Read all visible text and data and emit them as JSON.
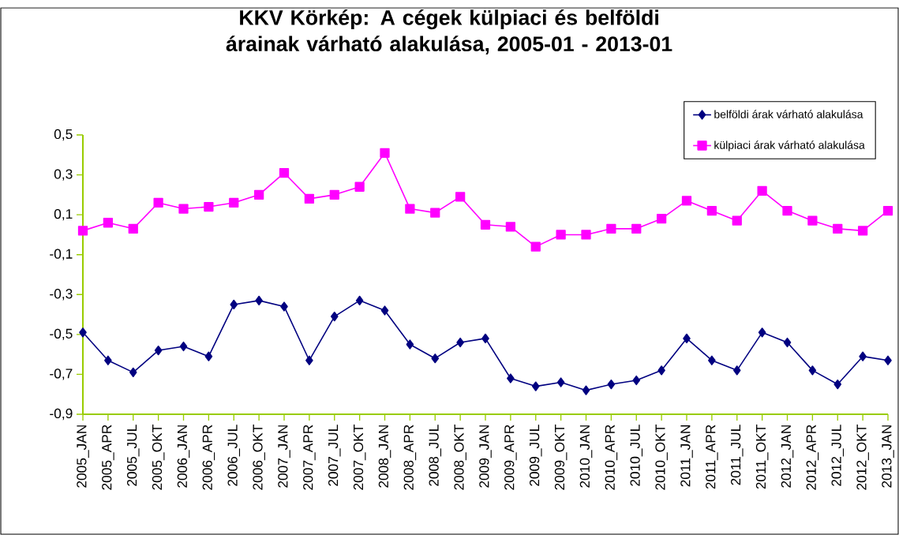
{
  "chart_data": {
    "type": "line",
    "title": "KKV Körkép: A cégek külpiaci és belföldi árainak várható alakulása, 2005-01 - 2013-01",
    "categories": [
      "2005_JAN",
      "2005_APR",
      "2005_JUL",
      "2005_OKT",
      "2006_JAN",
      "2006_APR",
      "2006_JUL",
      "2006_OKT",
      "2007_JAN",
      "2007_APR",
      "2007_JUL",
      "2007_OKT",
      "2008_JAN",
      "2008_APR",
      "2008_JUL",
      "2008_OKT",
      "2009_JAN",
      "2009_APR",
      "2009_JUL",
      "2009_OKT",
      "2010_JAN",
      "2010_APR",
      "2010_JUL",
      "2010_OKT",
      "2011_JAN",
      "2011_APR",
      "2011_JUL",
      "2011_OKT",
      "2012_JAN",
      "2012_APR",
      "2012_JUL",
      "2012_OKT",
      "2013_JAN"
    ],
    "series": [
      {
        "name": "belföldi árak várható alakulása",
        "color": "#000080",
        "marker": "diamond",
        "values": [
          -0.49,
          -0.63,
          -0.69,
          -0.58,
          -0.56,
          -0.61,
          -0.35,
          -0.33,
          -0.36,
          -0.63,
          -0.41,
          -0.33,
          -0.38,
          -0.55,
          -0.62,
          -0.54,
          -0.52,
          -0.72,
          -0.76,
          -0.74,
          -0.78,
          -0.75,
          -0.73,
          -0.68,
          -0.52,
          -0.63,
          -0.68,
          -0.49,
          -0.54,
          -0.68,
          -0.75,
          -0.61,
          -0.63
        ]
      },
      {
        "name": "külpiaci árak várható alakulása",
        "color": "#ff00ff",
        "marker": "square",
        "values": [
          0.02,
          0.06,
          0.03,
          0.16,
          0.13,
          0.14,
          0.16,
          0.2,
          0.31,
          0.18,
          0.2,
          0.24,
          0.41,
          0.13,
          0.11,
          0.19,
          0.05,
          0.04,
          -0.06,
          0.0,
          0.0,
          0.03,
          0.03,
          0.08,
          0.17,
          0.12,
          0.07,
          0.22,
          0.12,
          0.07,
          0.03,
          0.02,
          0.12
        ]
      }
    ],
    "ylim": [
      -0.9,
      0.5
    ],
    "yticks": [
      {
        "value": -0.9,
        "label": "-0,9"
      },
      {
        "value": -0.7,
        "label": "-0,7"
      },
      {
        "value": -0.5,
        "label": "-0,5"
      },
      {
        "value": -0.3,
        "label": "-0,3"
      },
      {
        "value": -0.1,
        "label": "-0,1"
      },
      {
        "value": 0.1,
        "label": "0,1"
      },
      {
        "value": 0.3,
        "label": "0,3"
      },
      {
        "value": 0.5,
        "label": "0,5"
      }
    ],
    "grid": false,
    "legend": "top right",
    "line_style": "solid"
  }
}
